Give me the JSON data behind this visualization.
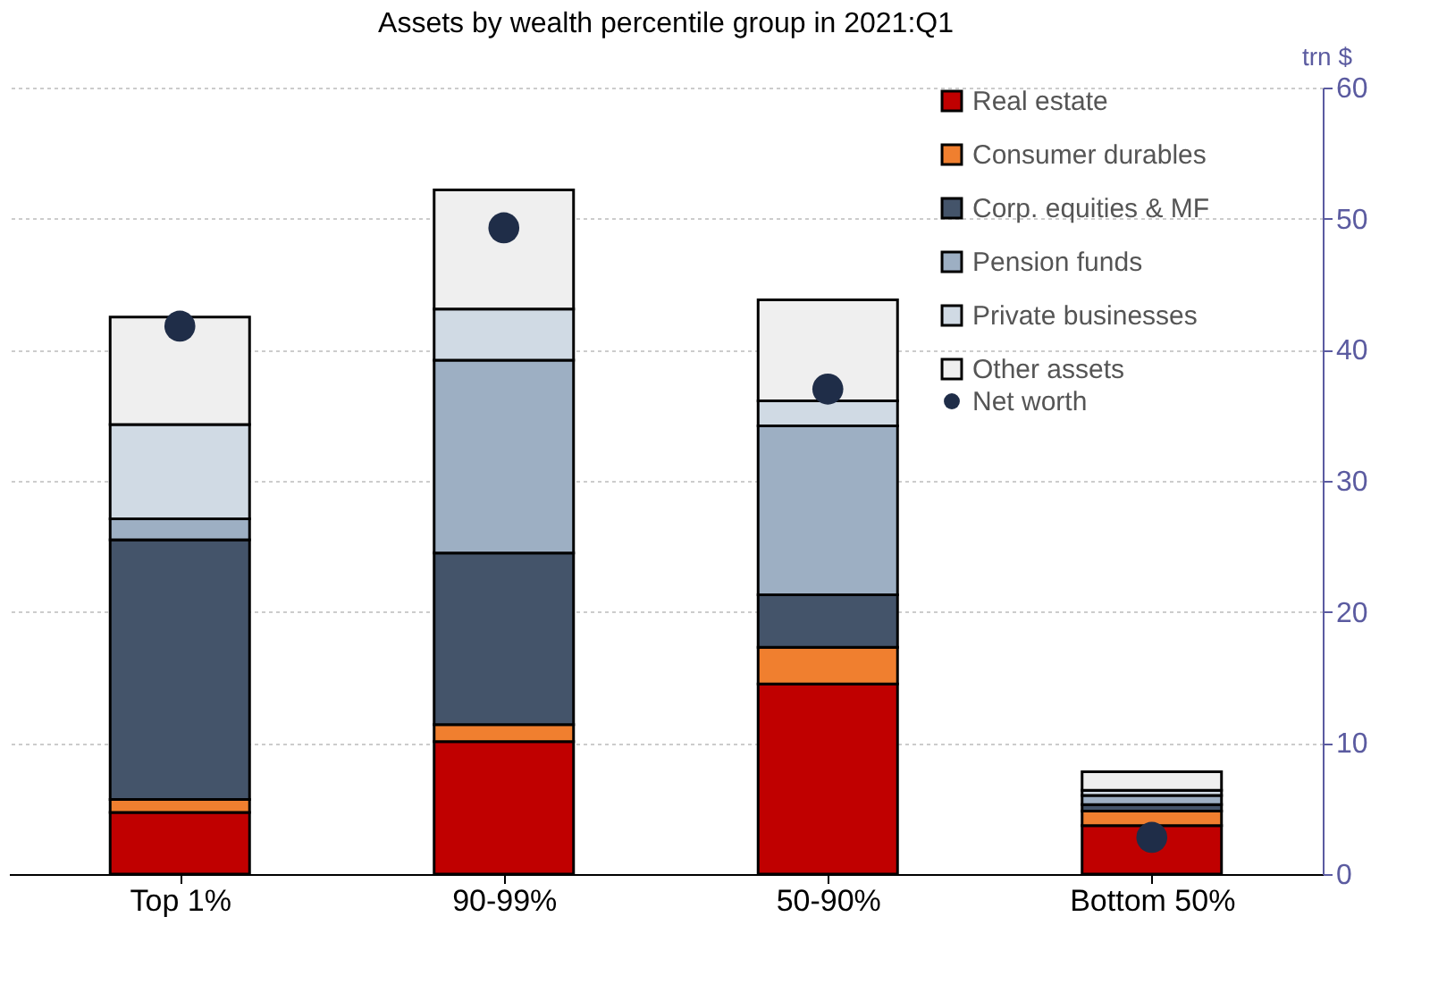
{
  "chart_data": {
    "type": "bar",
    "stacked": true,
    "title": "Assets by wealth percentile group in 2021:Q1",
    "ylabel": "trn $",
    "categories": [
      "Top 1%",
      "90-99%",
      "50-90%",
      "Bottom 50%"
    ],
    "series": [
      {
        "name": "Real estate",
        "color": "#c00000",
        "values": [
          4.7,
          10.1,
          14.5,
          3.7
        ]
      },
      {
        "name": "Consumer durables",
        "color": "#f07f2f",
        "values": [
          1.0,
          1.3,
          2.8,
          1.1
        ]
      },
      {
        "name": "Corp. equities & MF",
        "color": "#44546a",
        "values": [
          19.8,
          13.1,
          4.0,
          0.5
        ]
      },
      {
        "name": "Pension funds",
        "color": "#9dafc3",
        "values": [
          1.6,
          14.7,
          12.9,
          0.7
        ]
      },
      {
        "name": "Private businesses",
        "color": "#d0dae4",
        "values": [
          7.2,
          3.9,
          1.9,
          0.4
        ]
      },
      {
        "name": "Other assets",
        "color": "#efefef",
        "values": [
          8.2,
          9.1,
          7.7,
          1.4
        ]
      },
      {
        "name": "Net worth",
        "type": "scatter",
        "color": "#1f2d48",
        "x": [
          "Top 1%",
          "90-99%",
          "50-90%",
          "Bottom 50%"
        ],
        "values": [
          41.8,
          49.3,
          37.0,
          2.8
        ]
      }
    ],
    "ylim": [
      0,
      60
    ],
    "yticks": [
      0,
      10,
      20,
      30,
      40,
      50,
      60
    ],
    "grid": "y",
    "legend": "top right",
    "marker": "circle"
  }
}
